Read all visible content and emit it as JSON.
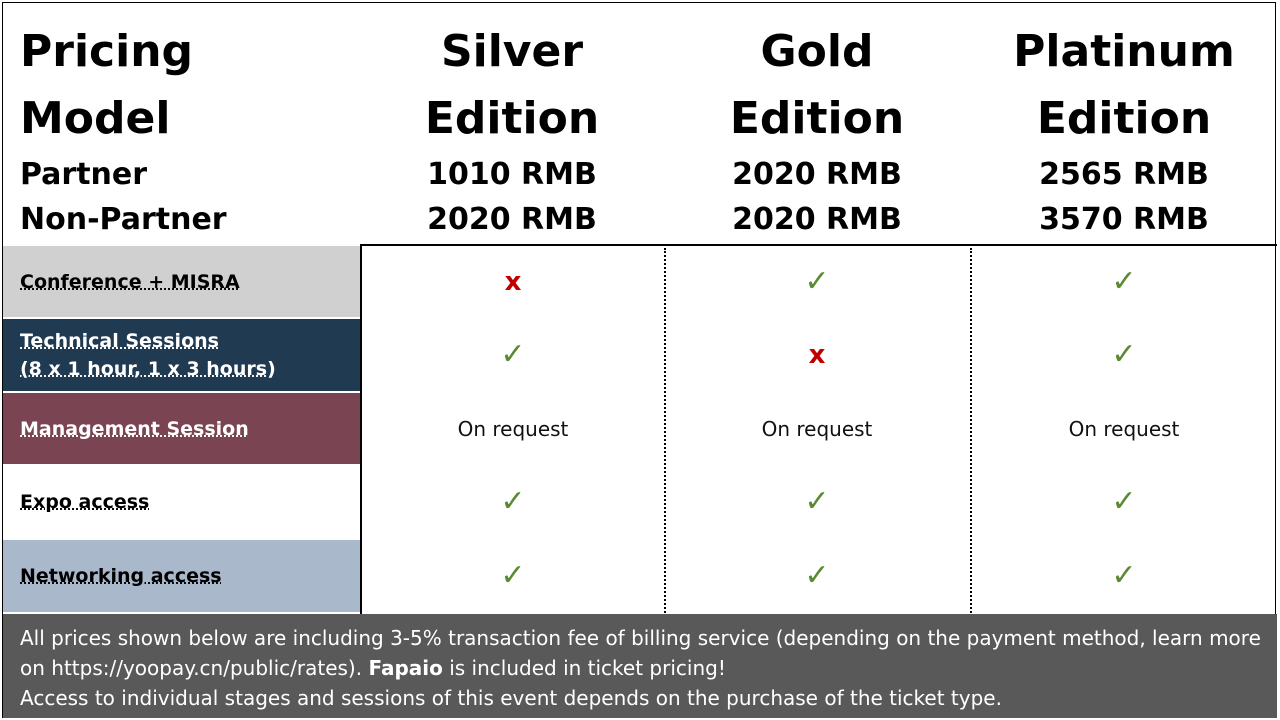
{
  "header": {
    "title_line1": "Pricing",
    "title_line2": "Model",
    "partner_label": "Partner",
    "nonpartner_label": "Non-Partner",
    "tiers": [
      {
        "line1": "Silver",
        "line2": "Edition",
        "partner_price": "1010 RMB",
        "nonpartner_price": "2020 RMB"
      },
      {
        "line1": "Gold",
        "line2": "Edition",
        "partner_price": "2020 RMB",
        "nonpartner_price": "2020 RMB"
      },
      {
        "line1": "Platinum",
        "line2": "Edition",
        "partner_price": "2565 RMB",
        "nonpartner_price": "3570 RMB"
      }
    ]
  },
  "rows": [
    {
      "label_lines": [
        "Conference + MISRA"
      ],
      "bg": "#d0d0d0",
      "fg": "#000000",
      "cells": [
        {
          "kind": "cross",
          "glyph": "x"
        },
        {
          "kind": "check",
          "glyph": "✓"
        },
        {
          "kind": "check",
          "glyph": "✓"
        }
      ]
    },
    {
      "label_lines": [
        "Technical Sessions",
        "(8 x 1 hour, 1 x 3 hours)"
      ],
      "bg": "#203a52",
      "fg": "#ffffff",
      "cells": [
        {
          "kind": "check",
          "glyph": "✓"
        },
        {
          "kind": "cross",
          "glyph": "x"
        },
        {
          "kind": "check",
          "glyph": "✓"
        }
      ]
    },
    {
      "label_lines": [
        "Management Session"
      ],
      "bg": "#7b4453",
      "fg": "#ffffff",
      "cells": [
        {
          "kind": "text",
          "glyph": "On request"
        },
        {
          "kind": "text",
          "glyph": "On request"
        },
        {
          "kind": "text",
          "glyph": "On request"
        }
      ]
    },
    {
      "label_lines": [
        "Expo access"
      ],
      "bg": "#ffffff",
      "fg": "#000000",
      "cells": [
        {
          "kind": "check",
          "glyph": "✓"
        },
        {
          "kind": "check",
          "glyph": "✓"
        },
        {
          "kind": "check",
          "glyph": "✓"
        }
      ]
    },
    {
      "label_lines": [
        "Networking access"
      ],
      "bg": "#aab8cc",
      "fg": "#000000",
      "cells": [
        {
          "kind": "check",
          "glyph": "✓"
        },
        {
          "kind": "check",
          "glyph": "✓"
        },
        {
          "kind": "check",
          "glyph": "✓"
        }
      ]
    }
  ],
  "footer": {
    "line1_pre": "All prices shown below are including 3-5% transaction fee of billing service (depending on the payment method, learn more on https://yoopay.cn/public/rates). ",
    "line1_bold": "Fapaio",
    "line1_post": " is included in ticket pricing!",
    "line2": "Access to individual stages and sessions of this event depends on the purchase of the ticket type."
  },
  "colors": {
    "check": "#5a8a32",
    "cross": "#c00000",
    "footer_bg": "#595959"
  }
}
